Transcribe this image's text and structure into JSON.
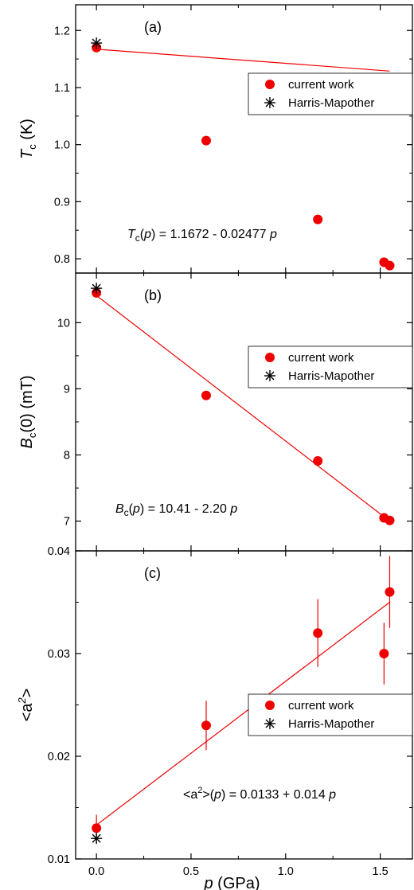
{
  "colors": {
    "current": "#ee0000",
    "fit": "#ee0000",
    "harris": "#000000",
    "axes": "#000000"
  },
  "xaxis": {
    "label_var": "p",
    "label_unit": " (GPa)",
    "range": [
      -0.11,
      1.67
    ],
    "ticks": [
      "0.0",
      "0.5",
      "1.0",
      "1.5"
    ]
  },
  "chart_data": [
    {
      "type": "scatter",
      "panel": "(a)",
      "ylabel_main": "T",
      "ylabel_sub": "c",
      "ylabel_unit": " (K)",
      "ylim": [
        0.775,
        1.245
      ],
      "yticks": [
        "0.8",
        "0.9",
        "1.0",
        "1.1",
        "1.2"
      ],
      "legend": {
        "current": "current work",
        "harris": "Harris-Mapother"
      },
      "equation": {
        "main": "T",
        "sub": "c",
        "open": "(",
        "var": "p",
        "rest": ") = 1.1672 - 0.02477 ",
        "tail": "p"
      },
      "series": [
        {
          "name": "current work",
          "x": [
            0.0,
            0.58,
            1.17,
            1.52,
            1.55
          ],
          "y": [
            1.17,
            1.007,
            0.869,
            0.794,
            0.788
          ]
        },
        {
          "name": "Harris-Mapother",
          "x": [
            0.0
          ],
          "y": [
            1.178
          ]
        }
      ],
      "fit": {
        "intercept": 1.1672,
        "slope": -0.02477,
        "x_range": [
          0.0,
          1.55
        ]
      }
    },
    {
      "type": "scatter",
      "panel": "(b)",
      "ylabel_main": "B",
      "ylabel_sub": "c",
      "ylabel_unit": "(0) (mT)",
      "ylim": [
        6.55,
        10.75
      ],
      "yticks": [
        "7",
        "8",
        "9",
        "10"
      ],
      "legend": {
        "current": "current work",
        "harris": "Harris-Mapother"
      },
      "equation": {
        "main": "B",
        "sub": "c",
        "open": "(",
        "var": "p",
        "rest": ") = 10.41 - 2.20 ",
        "tail": "p"
      },
      "series": [
        {
          "name": "current work",
          "x": [
            0.0,
            0.58,
            1.17,
            1.52,
            1.55
          ],
          "y": [
            10.45,
            8.9,
            7.91,
            7.05,
            7.01
          ]
        },
        {
          "name": "Harris-Mapother",
          "x": [
            0.0
          ],
          "y": [
            10.52
          ]
        }
      ],
      "fit": {
        "intercept": 10.41,
        "slope": -2.2,
        "x_range": [
          0.0,
          1.55
        ]
      }
    },
    {
      "type": "scatter",
      "panel": "(c)",
      "ylabel_main": "<a",
      "ylabel_sup": "2",
      "ylabel_unit": ">",
      "ylim": [
        0.01,
        0.04
      ],
      "yticks": [
        "0.01",
        "0.02",
        "0.03",
        "0.04"
      ],
      "legend": {
        "current": "current work",
        "harris": "Harris-Mapother"
      },
      "equation": {
        "pre": "<a",
        "sup": "2",
        "mid": ">(",
        "var": "p",
        "rest": ") = 0.0133 + 0.014 ",
        "tail": "p"
      },
      "series": [
        {
          "name": "current work",
          "x": [
            0.0,
            0.58,
            1.17,
            1.52,
            1.55
          ],
          "y": [
            0.013,
            0.023,
            0.032,
            0.03,
            0.036
          ],
          "yerr": [
            0.0013,
            0.0024,
            0.0033,
            0.003,
            0.0035
          ]
        },
        {
          "name": "Harris-Mapother",
          "x": [
            0.0
          ],
          "y": [
            0.012
          ]
        }
      ],
      "fit": {
        "intercept": 0.0133,
        "slope": 0.014,
        "x_range": [
          0.0,
          1.55
        ]
      }
    }
  ]
}
